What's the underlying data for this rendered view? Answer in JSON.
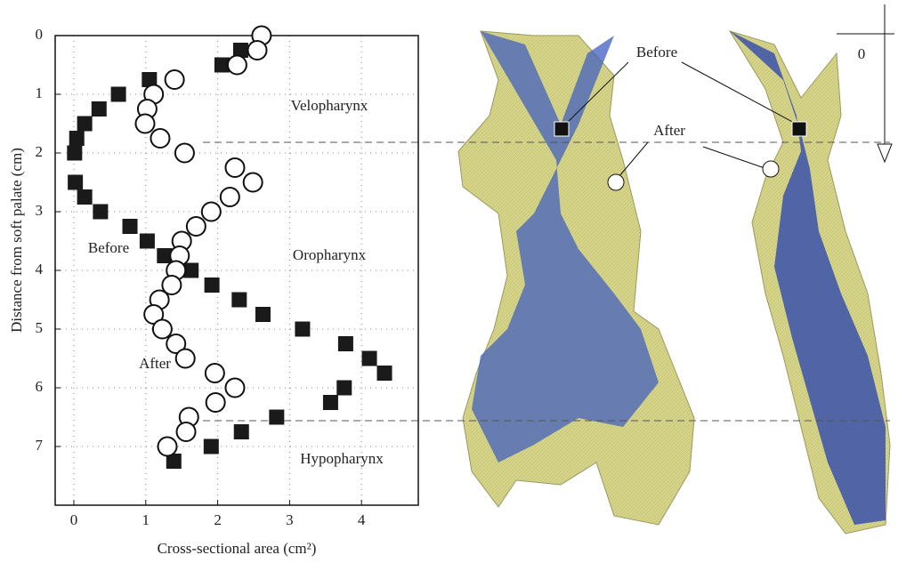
{
  "chart_data": {
    "type": "scatter",
    "x_label": "Cross-sectional area (cm²)",
    "y_label": "Distance from soft palate (cm)",
    "xlim": [
      -0.26,
      4.79
    ],
    "ylim": [
      0,
      8
    ],
    "y_inverted": true,
    "xticks": [
      0,
      1,
      2,
      3,
      4
    ],
    "yticks": [
      0,
      1,
      2,
      3,
      4,
      5,
      6,
      7
    ],
    "grid": true,
    "annotations": [
      "Velopharynx",
      "Oropharynx",
      "Hypopharynx",
      "Before",
      "After"
    ],
    "series": [
      {
        "name": "Before",
        "marker": "square",
        "color": "#1a1a1a",
        "x": [
          2.32,
          2.06,
          1.05,
          0.62,
          0.35,
          0.15,
          0.04,
          0.01,
          0.02,
          0.15,
          0.37,
          0.78,
          1.02,
          1.26,
          1.63,
          1.92,
          2.3,
          2.63,
          3.18,
          3.78,
          4.11,
          4.32,
          3.76,
          3.57,
          2.82,
          2.33,
          1.91,
          1.39
        ],
        "values": [
          0.25,
          0.5,
          0.75,
          1.0,
          1.25,
          1.5,
          1.75,
          2.0,
          2.5,
          2.75,
          3.0,
          3.25,
          3.5,
          3.75,
          4.0,
          4.25,
          4.5,
          4.75,
          5.0,
          5.25,
          5.5,
          5.75,
          6.0,
          6.25,
          6.5,
          6.75,
          7.0,
          7.25
        ]
      },
      {
        "name": "After",
        "marker": "circle",
        "color": "#ffffff",
        "x": [
          2.61,
          2.55,
          2.27,
          1.4,
          1.11,
          1.02,
          0.99,
          1.2,
          1.54,
          2.24,
          2.49,
          2.17,
          1.91,
          1.7,
          1.5,
          1.47,
          1.42,
          1.36,
          1.19,
          1.11,
          1.23,
          1.42,
          1.55,
          1.96,
          2.24,
          1.97,
          1.6,
          1.56,
          1.3
        ],
        "values": [
          0,
          0.25,
          0.5,
          0.75,
          1.0,
          1.25,
          1.5,
          1.75,
          2.0,
          2.25,
          2.5,
          2.75,
          3.0,
          3.25,
          3.5,
          3.75,
          4.0,
          4.25,
          4.5,
          4.75,
          5.0,
          5.25,
          5.5,
          5.75,
          6.0,
          6.25,
          6.5,
          6.75,
          7.0
        ]
      }
    ]
  },
  "figure_labels": {
    "before": "Before",
    "after": "After",
    "origin": "0"
  }
}
